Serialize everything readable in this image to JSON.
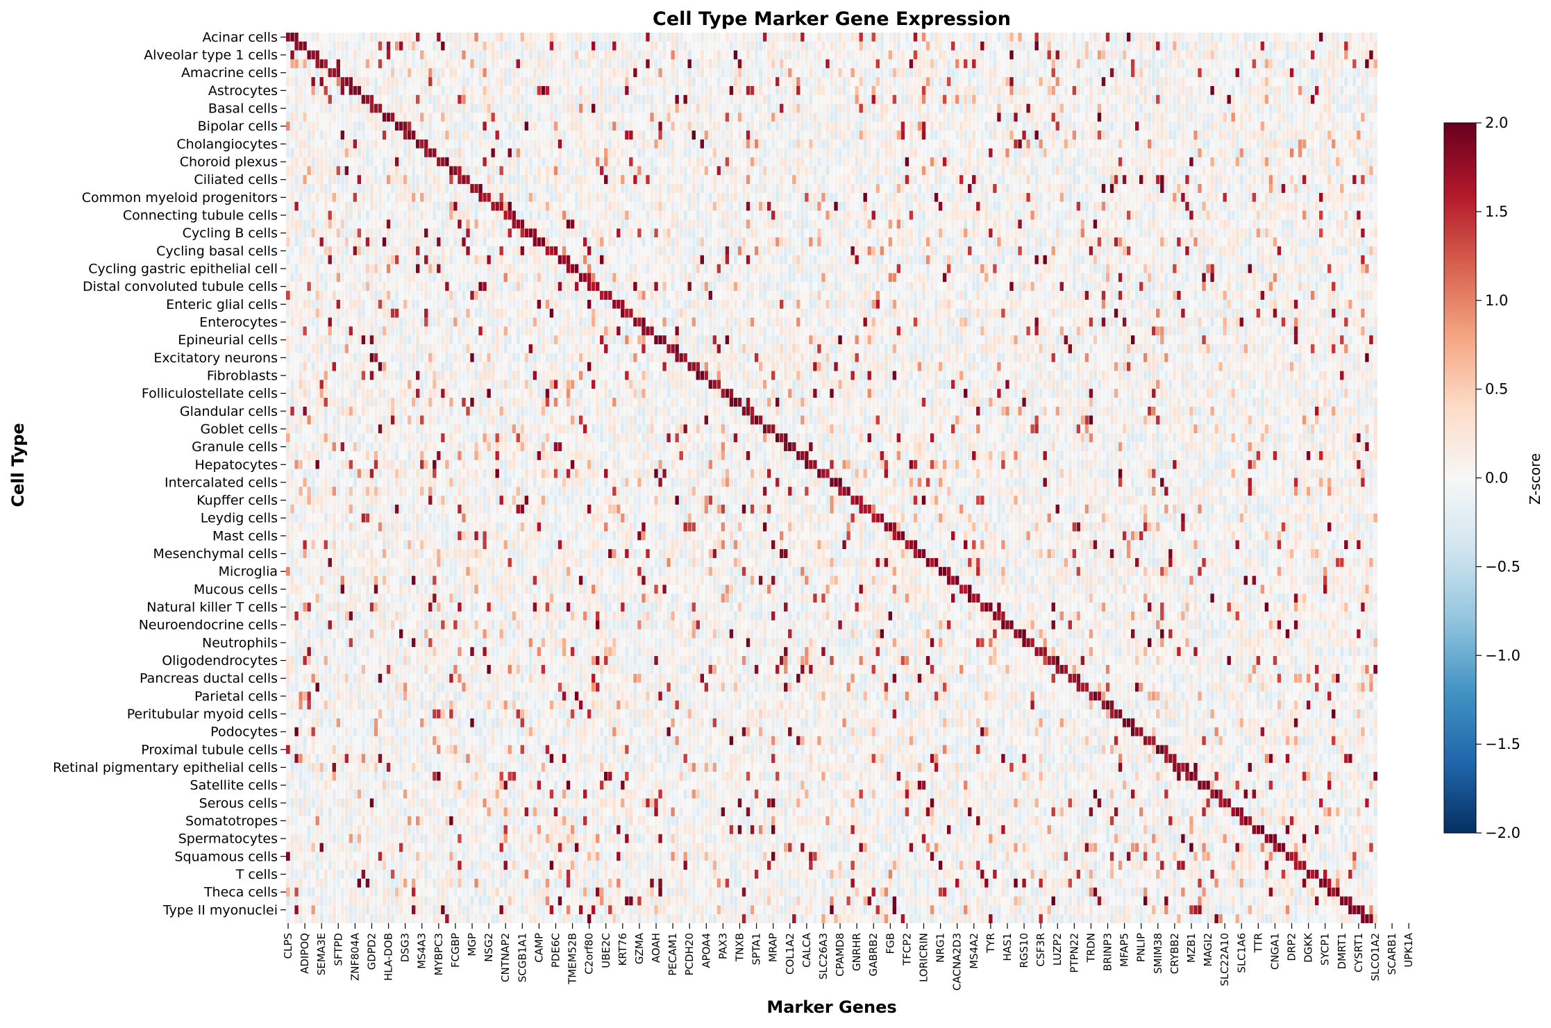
{
  "chart_data": {
    "type": "heatmap",
    "title": "Cell Type Marker Gene Expression",
    "xlabel": "Marker Genes",
    "ylabel": "Cell Type",
    "colorbar_label": "Z-score",
    "colormap": "RdBu_r",
    "colors": {
      "low": "#053061",
      "mid": "#f7f7f7",
      "high": "#67001f"
    },
    "vmin": -2.0,
    "vmax": 2.0,
    "colorbar_ticks": [
      "2.0",
      "1.5",
      "1.0",
      "0.5",
      "0.0",
      "−0.5",
      "−1.0",
      "−1.5",
      "−2.0"
    ],
    "n_rows": 100,
    "n_cols": 261,
    "row_labels": [
      "Acinar cells",
      "Alveolar type 1 cells",
      "Amacrine cells",
      "Astrocytes",
      "Basal cells",
      "Bipolar cells",
      "Cholangiocytes",
      "Choroid plexus",
      "Ciliated cells",
      "Common myeloid progenitors",
      "Connecting tubule cells",
      "Cycling B cells",
      "Cycling basal cells",
      "Cycling gastric epithelial cell",
      "Distal convoluted tubule cells",
      "Enteric glial cells",
      "Enterocytes",
      "Epineurial cells",
      "Excitatory neurons",
      "Fibroblasts",
      "Folliculostellate cells",
      "Glandular cells",
      "Goblet cells",
      "Granule cells",
      "Hepatocytes",
      "Intercalated cells",
      "Kupffer cells",
      "Leydig cells",
      "Mast cells",
      "Mesenchymal cells",
      "Microglia",
      "Mucous cells",
      "Natural killer T cells",
      "Neuroendocrine cells",
      "Neutrophils",
      "Oligodendrocytes",
      "Pancreas ductal cells",
      "Parietal cells",
      "Peritubular myoid cells",
      "Podocytes",
      "Proximal tubule cells",
      "Retinal pigmentary epithelial cells",
      "Satellite cells",
      "Serous cells",
      "Somatotropes",
      "Spermatocytes",
      "Squamous cells",
      "T cells",
      "Theca cells",
      "Type II myonuclei"
    ],
    "row_label_every": 2,
    "col_labels": [
      "CLPS",
      "ADIPOQ",
      "SEMA3E",
      "SFTPD",
      "ZNF804A",
      "GDPD2",
      "HLA-DOB",
      "DSG3",
      "MS4A3",
      "MYBPC3",
      "FCGBP",
      "MGP",
      "NSG2",
      "CNTNAP2",
      "SCGB1A1",
      "CAMP",
      "PDE6C",
      "TMEM52B",
      "C2orf80",
      "UBE2C",
      "KRT76",
      "GZMA",
      "AOAH",
      "PECAM1",
      "PCDH20",
      "APOA4",
      "PAX3",
      "TNXB",
      "SPTA1",
      "MRAP",
      "COL1A2",
      "CALCA",
      "SLC26A3",
      "CPAMD8",
      "GNRHR",
      "GABRB2",
      "FGB",
      "TFCP2",
      "LORICRIN",
      "NRG1",
      "CACNA2D3",
      "MS4A2",
      "TYR",
      "HAS1",
      "RGS10",
      "CSF3R",
      "LUZP2",
      "PTPN22",
      "TRDN",
      "BRINP3",
      "MFAP5",
      "PNLIP",
      "SMIM38",
      "CRYBB2",
      "MZB1",
      "MAGI2",
      "SLC22A10",
      "SLC1A6",
      "TTR",
      "CNGA1",
      "DRP2",
      "DGKK",
      "SYCP1",
      "DMRT1",
      "CYSRT1",
      "SLCO1A2",
      "SCARB1",
      "UPK1A"
    ],
    "col_label_every": 4,
    "diagonal_band": {
      "cols_per_row": 2.6,
      "value_range": [
        1.6,
        2.0
      ]
    },
    "background_value_range": [
      -0.3,
      0.3
    ]
  }
}
